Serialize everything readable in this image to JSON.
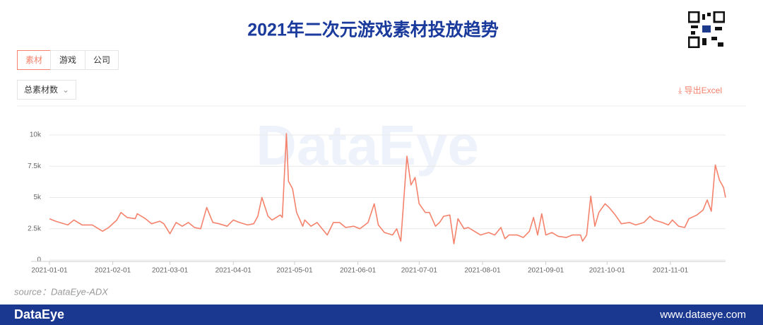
{
  "page": {
    "tabs": [
      "素材",
      "游戏",
      "公司"
    ],
    "dropdown": "总素材数",
    "export": "导出Excel",
    "watermark": "DataEye",
    "source": "source：DataEye-ADX",
    "footer_logo": "DataEye",
    "footer_url": "www.dataeye.com"
  },
  "chart_data": {
    "type": "line",
    "title": "2021年二次元游戏素材投放趋势",
    "color": "#f4826c",
    "x": [
      "2021-01-01",
      "2021-01-04",
      "2021-01-10",
      "2021-01-13",
      "2021-01-17",
      "2021-01-22",
      "2021-01-27",
      "2021-01-30",
      "2021-02-03",
      "2021-02-05",
      "2021-02-08",
      "2021-02-12",
      "2021-02-13",
      "2021-02-17",
      "2021-02-20",
      "2021-02-24",
      "2021-02-26",
      "2021-03-01",
      "2021-03-04",
      "2021-03-07",
      "2021-03-10",
      "2021-03-13",
      "2021-03-16",
      "2021-03-19",
      "2021-03-22",
      "2021-03-25",
      "2021-03-29",
      "2021-04-01",
      "2021-04-04",
      "2021-04-08",
      "2021-04-11",
      "2021-04-13",
      "2021-04-15",
      "2021-04-18",
      "2021-04-20",
      "2021-04-24",
      "2021-04-25",
      "2021-04-27",
      "2021-04-28",
      "2021-04-30",
      "2021-05-02",
      "2021-05-05",
      "2021-05-06",
      "2021-05-09",
      "2021-05-12",
      "2021-05-14",
      "2021-05-17",
      "2021-05-20",
      "2021-05-23",
      "2021-05-26",
      "2021-05-30",
      "2021-06-02",
      "2021-06-06",
      "2021-06-09",
      "2021-06-11",
      "2021-06-14",
      "2021-06-18",
      "2021-06-20",
      "2021-06-22",
      "2021-06-25",
      "2021-06-27",
      "2021-06-29",
      "2021-07-01",
      "2021-07-04",
      "2021-07-06",
      "2021-07-09",
      "2021-07-11",
      "2021-07-13",
      "2021-07-16",
      "2021-07-18",
      "2021-07-20",
      "2021-07-23",
      "2021-07-25",
      "2021-07-28",
      "2021-07-31",
      "2021-08-04",
      "2021-08-07",
      "2021-08-10",
      "2021-08-12",
      "2021-08-14",
      "2021-08-18",
      "2021-08-21",
      "2021-08-24",
      "2021-08-26",
      "2021-08-28",
      "2021-08-30",
      "2021-09-01",
      "2021-09-04",
      "2021-09-07",
      "2021-09-11",
      "2021-09-14",
      "2021-09-18",
      "2021-09-19",
      "2021-09-21",
      "2021-09-23",
      "2021-09-25",
      "2021-09-27",
      "2021-09-30",
      "2021-10-02",
      "2021-10-05",
      "2021-10-08",
      "2021-10-12",
      "2021-10-15",
      "2021-10-19",
      "2021-10-22",
      "2021-10-24",
      "2021-10-28",
      "2021-10-31",
      "2021-11-02",
      "2021-11-05",
      "2021-11-08",
      "2021-11-10",
      "2021-11-14",
      "2021-11-17",
      "2021-11-19",
      "2021-11-21",
      "2021-11-23",
      "2021-11-25",
      "2021-11-27",
      "2021-11-28"
    ],
    "values": [
      3300,
      3100,
      2800,
      3200,
      2800,
      2800,
      2300,
      2600,
      3200,
      3800,
      3400,
      3300,
      3700,
      3300,
      2900,
      3100,
      2900,
      2100,
      3000,
      2700,
      3000,
      2600,
      2500,
      4200,
      3000,
      2900,
      2700,
      3200,
      3000,
      2800,
      2900,
      3500,
      5000,
      3500,
      3200,
      3600,
      3400,
      10100,
      6300,
      5700,
      3800,
      2700,
      3200,
      2700,
      3000,
      2600,
      2000,
      3000,
      3000,
      2600,
      2700,
      2500,
      3000,
      4500,
      2800,
      2200,
      2000,
      2500,
      1500,
      8300,
      6000,
      6600,
      4500,
      3800,
      3800,
      2700,
      3000,
      3500,
      3600,
      1300,
      3300,
      2500,
      2600,
      2300,
      2000,
      2200,
      2000,
      2600,
      1700,
      2000,
      2000,
      1800,
      2300,
      3400,
      2000,
      3700,
      2000,
      2200,
      1900,
      1800,
      2000,
      2000,
      1500,
      2000,
      5100,
      2700,
      3800,
      4500,
      4200,
      3600,
      2900,
      3000,
      2800,
      3000,
      3500,
      3200,
      3000,
      2800,
      3200,
      2700,
      2600,
      3300,
      3600,
      4000,
      4800,
      3900,
      7600,
      6400,
      5800,
      5000
    ],
    "xlim": [
      "2021-01-01",
      "2021-11-28"
    ],
    "xticks": [
      "2021-01-01",
      "2021-02-01",
      "2021-03-01",
      "2021-04-01",
      "2021-05-01",
      "2021-06-01",
      "2021-07-01",
      "2021-08-01",
      "2021-09-01",
      "2021-10-01",
      "2021-11-01"
    ],
    "ylim": [
      0,
      10000
    ],
    "yticks": [
      0,
      {
        "value": 2500,
        "label": "2.5k"
      },
      {
        "value": 5000,
        "label": "5k"
      },
      {
        "value": 7500,
        "label": "7.5k"
      },
      {
        "value": 10000,
        "label": "10k"
      }
    ],
    "grid": true
  }
}
